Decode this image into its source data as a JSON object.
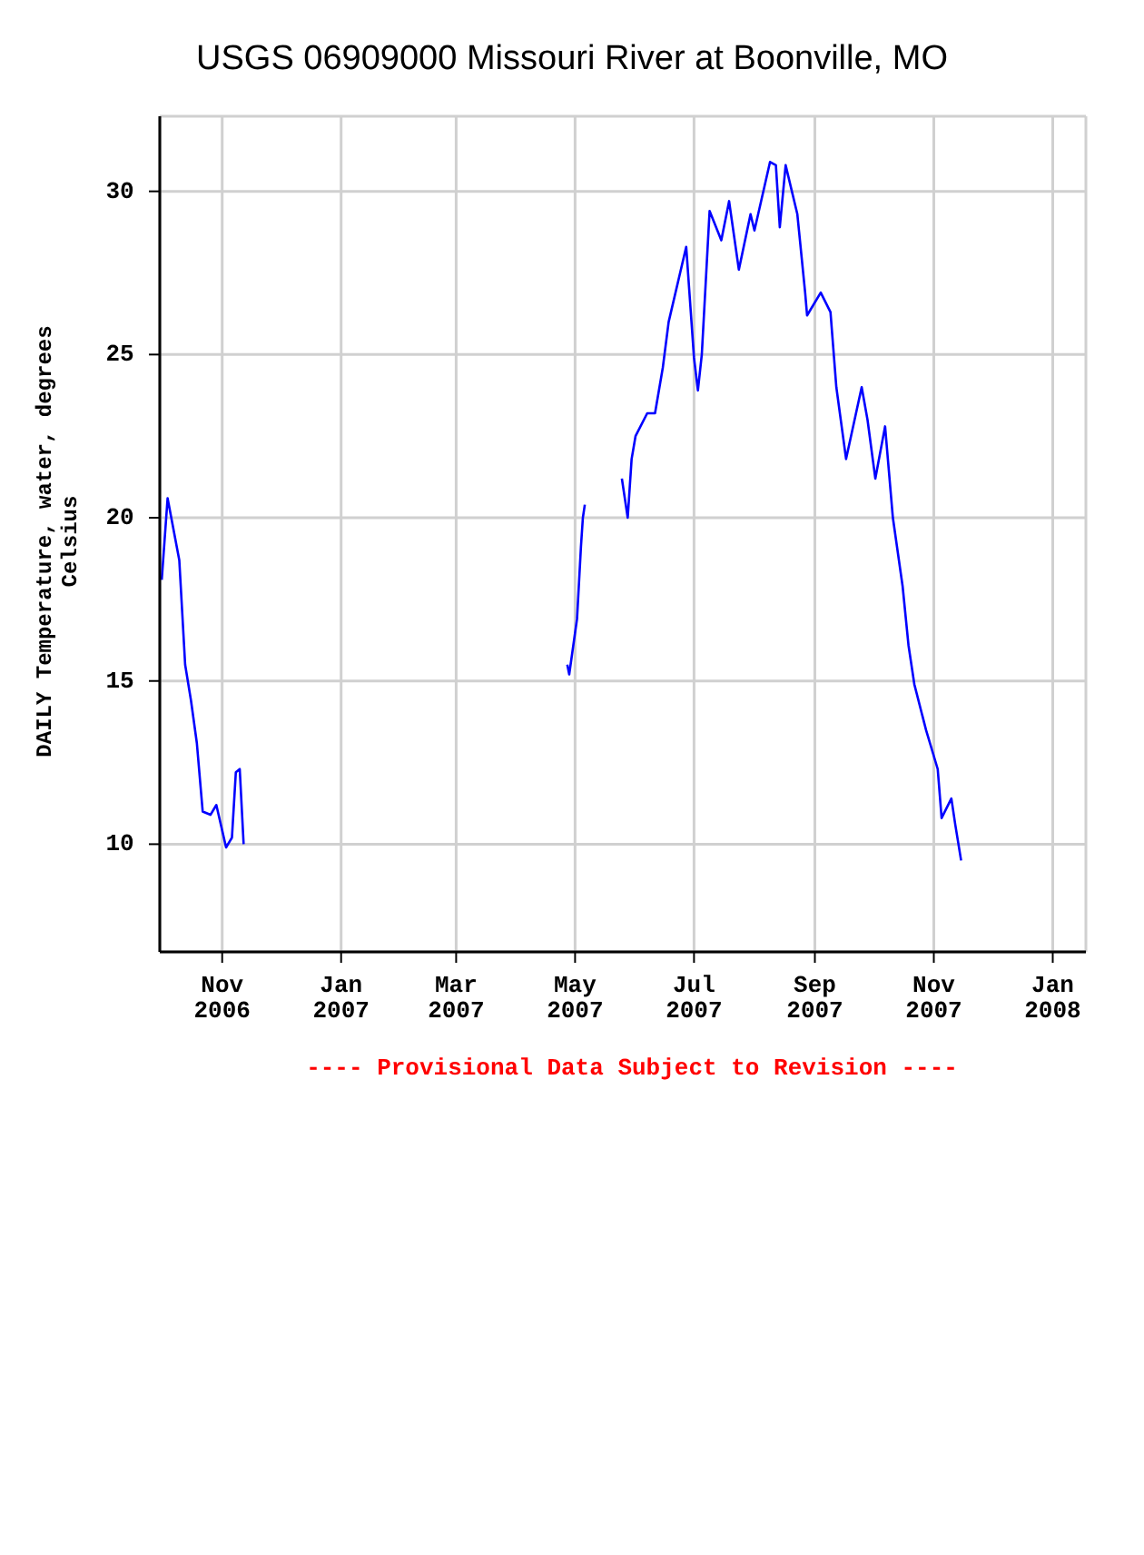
{
  "chart_data": {
    "type": "line",
    "title": "USGS 06909000 Missouri River at Boonville, MO",
    "ylabel": "DAILY Temperature, water, degrees Celsius",
    "annotations": [
      "---- Provisional Data Subject to Revision ----"
    ],
    "x": [
      "2006-10-01",
      "2006-10-04",
      "2006-10-10",
      "2006-10-13",
      "2006-10-16",
      "2006-10-19",
      "2006-10-22",
      "2006-10-26",
      "2006-10-29",
      "2006-11-03",
      "2006-11-06",
      "2006-11-08",
      "2006-11-10",
      "2006-11-12",
      "2007-02-01",
      "2007-04-27",
      "2007-04-28",
      "2007-05-02",
      "2007-05-04",
      "2007-05-05",
      "2007-05-06",
      "2007-05-15",
      "2007-05-25",
      "2007-05-28",
      "2007-05-30",
      "2007-06-01",
      "2007-06-07",
      "2007-06-11",
      "2007-06-15",
      "2007-06-18",
      "2007-06-27",
      "2007-07-01",
      "2007-07-03",
      "2007-07-05",
      "2007-07-09",
      "2007-07-15",
      "2007-07-19",
      "2007-07-24",
      "2007-07-30",
      "2007-08-01",
      "2007-08-09",
      "2007-08-12",
      "2007-08-14",
      "2007-08-17",
      "2007-08-23",
      "2007-08-27",
      "2007-08-28",
      "2007-09-04",
      "2007-09-09",
      "2007-09-12",
      "2007-09-17",
      "2007-09-25",
      "2007-09-28",
      "2007-10-02",
      "2007-10-07",
      "2007-10-11",
      "2007-10-16",
      "2007-10-19",
      "2007-10-22",
      "2007-10-28",
      "2007-11-03",
      "2007-11-05",
      "2007-11-10",
      "2007-11-12",
      "2007-11-15"
    ],
    "series": [
      {
        "color": "#0000ff",
        "values": [
          18.1,
          20.6,
          18.7,
          15.5,
          14.4,
          13.1,
          11.0,
          10.9,
          11.2,
          9.9,
          10.2,
          12.2,
          12.3,
          10.0,
          null,
          15.5,
          15.2,
          16.9,
          19.1,
          20.0,
          20.4,
          null,
          21.2,
          20.0,
          21.8,
          22.5,
          23.2,
          23.2,
          24.6,
          26.0,
          28.3,
          24.9,
          23.9,
          25.0,
          29.4,
          28.5,
          29.7,
          27.6,
          29.3,
          28.8,
          30.9,
          30.8,
          28.9,
          30.8,
          29.3,
          26.9,
          26.2,
          26.9,
          26.3,
          24.0,
          21.8,
          24.0,
          23.0,
          21.2,
          22.8,
          20.0,
          17.9,
          16.1,
          14.9,
          13.5,
          12.3,
          10.8,
          11.4,
          10.6,
          9.5
        ]
      }
    ],
    "xlim": [
      "2006-09-30",
      "2008-01-18"
    ],
    "xticks": [
      {
        "value": "2006-11-01",
        "label": "Nov\n2006"
      },
      {
        "value": "2007-01-01",
        "label": "Jan\n2007"
      },
      {
        "value": "2007-03-01",
        "label": "Mar\n2007"
      },
      {
        "value": "2007-05-01",
        "label": "May\n2007"
      },
      {
        "value": "2007-07-01",
        "label": "Jul\n2007"
      },
      {
        "value": "2007-09-01",
        "label": "Sep\n2007"
      },
      {
        "value": "2007-11-01",
        "label": "Nov\n2007"
      },
      {
        "value": "2008-01-01",
        "label": "Jan\n2008"
      }
    ],
    "ylim": [
      6.7,
      32.3
    ],
    "yticks": [
      10,
      15,
      20,
      25,
      30
    ],
    "grid": true,
    "legend": false,
    "marker": "none",
    "line_style": "solid"
  }
}
